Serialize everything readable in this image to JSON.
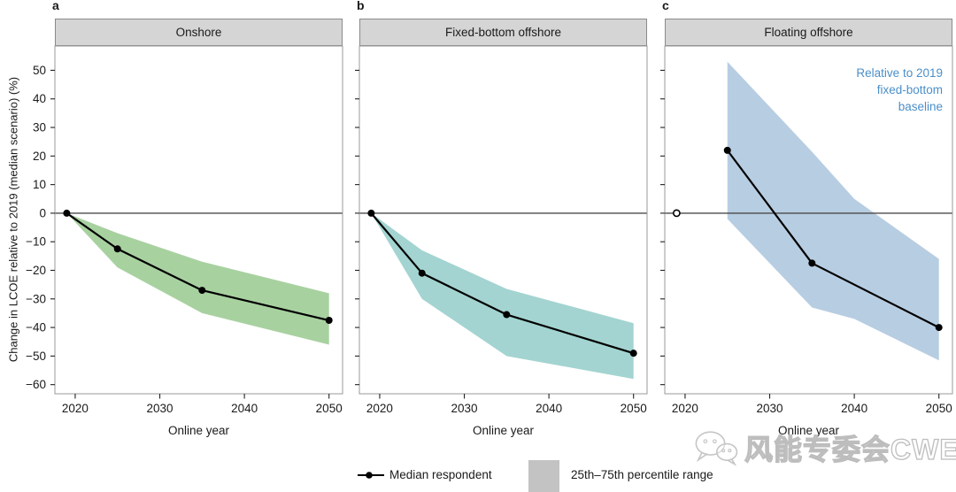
{
  "figure": {
    "ylabel": "Change in LCOE relative to 2019 (median scenario) (%)",
    "background": "#ffffff"
  },
  "legend": {
    "median_label": "Median respondent",
    "band_label": "25th–75th percentile range",
    "band_swatch_color": "#c3c3c3"
  },
  "watermark": {
    "icon": "wechat-icon",
    "text": "风能专委会CWEA"
  },
  "chart_data": [
    {
      "type": "line",
      "panel_letter": "a",
      "title": "Onshore",
      "band_color": "#a8d1a0",
      "x": [
        2019,
        2025,
        2035,
        2050
      ],
      "series": [
        {
          "name": "Median respondent",
          "values": [
            0,
            -12.5,
            -27,
            -37.5
          ]
        }
      ],
      "band": {
        "label": "25th–75th percentile range",
        "x": [
          2019,
          2025,
          2035,
          2050
        ],
        "upper": [
          0,
          -7,
          -17,
          -28
        ],
        "lower": [
          0,
          -19,
          -35,
          -46
        ]
      },
      "xticks": [
        2020,
        2030,
        2040,
        2050
      ],
      "yticks": [
        50,
        40,
        30,
        20,
        10,
        0,
        -10,
        -20,
        -30,
        -40,
        -50,
        -60
      ],
      "xlim": [
        2017.6,
        2051.6
      ],
      "ylim": [
        -63.2,
        58.5
      ],
      "xlabel": "Online year",
      "show_ytick_labels": true
    },
    {
      "type": "line",
      "panel_letter": "b",
      "title": "Fixed-bottom offshore",
      "band_color": "#a3d4d1",
      "x": [
        2019,
        2025,
        2035,
        2050
      ],
      "series": [
        {
          "name": "Median respondent",
          "values": [
            0,
            -21,
            -35.5,
            -49
          ]
        }
      ],
      "band": {
        "label": "25th–75th percentile range",
        "x": [
          2019,
          2025,
          2035,
          2050
        ],
        "upper": [
          0,
          -13,
          -26.5,
          -38.5
        ],
        "lower": [
          0,
          -30,
          -50,
          -58
        ]
      },
      "xticks": [
        2020,
        2030,
        2040,
        2050
      ],
      "yticks": [
        50,
        40,
        30,
        20,
        10,
        0,
        -10,
        -20,
        -30,
        -40,
        -50,
        -60
      ],
      "xlim": [
        2017.6,
        2051.6
      ],
      "ylim": [
        -63.2,
        58.5
      ],
      "xlabel": "Online year",
      "show_ytick_labels": false
    },
    {
      "type": "line",
      "panel_letter": "c",
      "title": "Floating offshore",
      "band_color": "#b7cde2",
      "baseline_point": {
        "x": 2019,
        "value": 0,
        "style": "open"
      },
      "x": [
        2025,
        2035,
        2050
      ],
      "series": [
        {
          "name": "Median respondent",
          "values": [
            22,
            -17.5,
            -40
          ]
        }
      ],
      "band": {
        "label": "25th–75th percentile range",
        "x": [
          2025,
          2035,
          2040,
          2050
        ],
        "upper": [
          53,
          21.5,
          5,
          -16
        ],
        "lower": [
          -2,
          -33,
          -37,
          -51.5
        ]
      },
      "annotation": {
        "lines": [
          "Relative to 2019",
          "fixed-bottom",
          "baseline"
        ],
        "color": "#4b8fc9"
      },
      "xticks": [
        2020,
        2030,
        2040,
        2050
      ],
      "yticks": [
        50,
        40,
        30,
        20,
        10,
        0,
        -10,
        -20,
        -30,
        -40,
        -50,
        -60
      ],
      "xlim": [
        2017.6,
        2051.6
      ],
      "ylim": [
        -63.2,
        58.5
      ],
      "xlabel": "Online year",
      "show_ytick_labels": false
    }
  ]
}
